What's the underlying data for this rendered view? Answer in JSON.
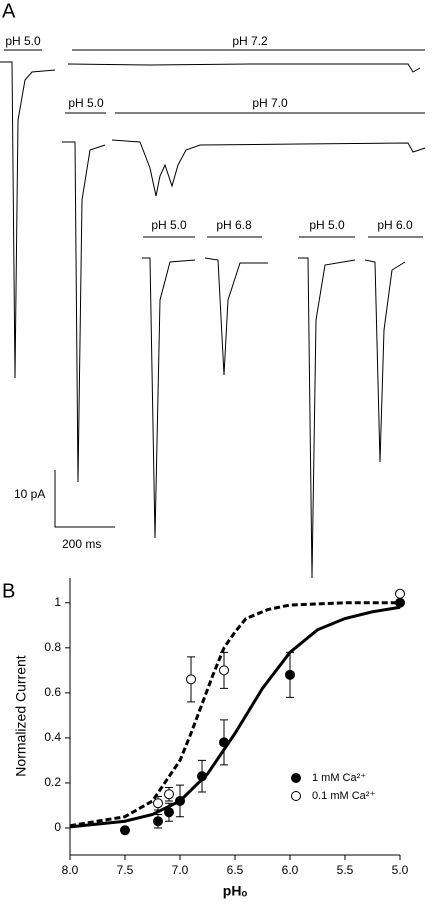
{
  "panel_labels": [
    "A",
    "B"
  ],
  "panel_a": {
    "labels": [
      "pH 5.0",
      "pH 7.2",
      "pH 5.0",
      "pH 7.0",
      "pH 5.0",
      "pH 6.8",
      "pH 5.0",
      "pH 6.0"
    ],
    "scale_current": "10 pA",
    "scale_time": "200 ms"
  },
  "chart_data": {
    "type": "scatter",
    "x_label": "pHₒ",
    "y_label": "Normalized Current",
    "xlim": [
      8.0,
      5.0
    ],
    "ylim": [
      -0.12,
      1.11
    ],
    "xticks": [
      {
        "value": 8,
        "label": "8.0"
      },
      {
        "value": 7.5,
        "label": "7.5"
      },
      {
        "value": 7,
        "label": "7.0"
      },
      {
        "value": 6.5,
        "label": "6.5"
      },
      {
        "value": 6,
        "label": "6.0"
      },
      {
        "value": 5.5,
        "label": "5.5"
      },
      {
        "value": 5,
        "label": "5.0"
      }
    ],
    "yticks": [
      0,
      0.2,
      0.4,
      0.6,
      0.8,
      1
    ],
    "series": [
      {
        "name": "1 mM Ca²⁺",
        "color": "#000000",
        "filled": true,
        "x": [
          7.5,
          7.2,
          7.1,
          7.0,
          6.8,
          6.6,
          6.0,
          5.0
        ],
        "values": [
          -0.01,
          0.03,
          0.07,
          0.12,
          0.23,
          0.38,
          0.68,
          1.0
        ],
        "errors": [
          0,
          0.03,
          0.04,
          0.07,
          0.07,
          0.1,
          0.1,
          0
        ]
      },
      {
        "name": "0.1 mM Ca²⁺",
        "color": "#000000",
        "filled": false,
        "x": [
          7.2,
          7.1,
          6.9,
          6.6,
          5.0
        ],
        "values": [
          0.11,
          0.15,
          0.66,
          0.7,
          1.04
        ],
        "errors": [
          0.03,
          0.03,
          0.1,
          0.08,
          0
        ]
      }
    ],
    "fits": [
      {
        "style": "solid",
        "x": [
          8.0,
          7.5,
          7.25,
          7.0,
          6.75,
          6.5,
          6.25,
          6.0,
          5.75,
          5.5,
          5.25,
          5.0
        ],
        "values": [
          0.005,
          0.03,
          0.06,
          0.12,
          0.24,
          0.42,
          0.62,
          0.78,
          0.88,
          0.93,
          0.96,
          0.98
        ]
      },
      {
        "style": "dashed",
        "x": [
          8.0,
          7.5,
          7.25,
          7.0,
          6.9,
          6.8,
          6.7,
          6.6,
          6.5,
          6.4,
          6.2,
          6.0,
          5.5,
          5.0
        ],
        "values": [
          0.01,
          0.05,
          0.12,
          0.3,
          0.42,
          0.55,
          0.68,
          0.8,
          0.87,
          0.93,
          0.97,
          0.99,
          1.0,
          1.0
        ]
      }
    ]
  }
}
